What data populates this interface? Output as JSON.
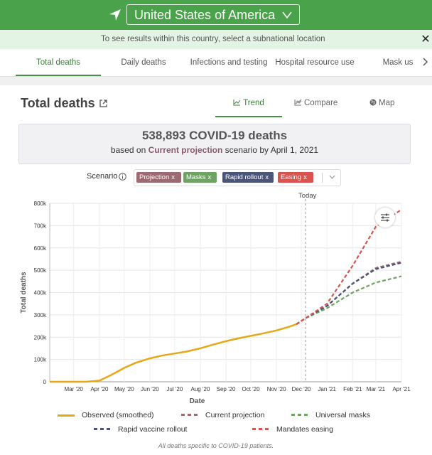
{
  "location": {
    "selected": "United States of America"
  },
  "infobar": {
    "message": "To see results within this country, select a subnational location",
    "close_glyph": "✕"
  },
  "tabs": [
    {
      "label": "Total deaths",
      "active": true
    },
    {
      "label": "Daily deaths"
    },
    {
      "label": "Infections and testing"
    },
    {
      "label": "Hospital resource use"
    },
    {
      "label": "Mask us"
    }
  ],
  "card": {
    "title": "Total deaths",
    "view_tabs": [
      {
        "label": "Trend",
        "icon": "trend-icon",
        "active": true
      },
      {
        "label": "Compare",
        "icon": "compare-icon"
      },
      {
        "label": "Map",
        "icon": "globe-icon"
      }
    ],
    "summary": {
      "headline": "538,893 COVID-19 deaths",
      "prefix": "based on",
      "scenario": "Current projection",
      "suffix": "scenario by April 1, 2021"
    },
    "scenario_label": "Scenario",
    "chips": [
      {
        "label": "Projection",
        "color": "#9b6a72"
      },
      {
        "label": "Masks",
        "color": "#6ea364"
      },
      {
        "label": "Rapid rollout",
        "color": "#4a5578"
      },
      {
        "label": "Easing",
        "color": "#d9534f"
      }
    ],
    "chip_remove_glyph": "x",
    "today_label": "Today",
    "footnote": "All deaths specific to COVID-19 patients."
  },
  "chart_data": {
    "type": "line",
    "xlabel": "Date",
    "ylabel": "Total deaths",
    "x_ticks": [
      "Mar '20",
      "Apr '20",
      "May '20",
      "Jun '20",
      "Jul '20",
      "Aug '20",
      "Sep '20",
      "Oct '20",
      "Nov '20",
      "Dec '20",
      "Jan '21",
      "Feb '21",
      "Mar '21",
      "Apr '21"
    ],
    "y_ticks": [
      "0",
      "100k",
      "200k",
      "300k",
      "400k",
      "500k",
      "600k",
      "700k",
      "800k"
    ],
    "ylim": [
      0,
      800000
    ],
    "xlim": [
      "2020-02-01",
      "2021-04-01"
    ],
    "today": "2020-12-06",
    "legend_placement": "bottom",
    "series": [
      {
        "name": "Observed (smoothed)",
        "color": "#e6a817",
        "style": "solid",
        "points": [
          [
            "2020-02-01",
            0
          ],
          [
            "2020-03-15",
            0
          ],
          [
            "2020-04-01",
            5000
          ],
          [
            "2020-04-15",
            30000
          ],
          [
            "2020-05-01",
            62000
          ],
          [
            "2020-05-15",
            85000
          ],
          [
            "2020-06-01",
            105000
          ],
          [
            "2020-06-15",
            117000
          ],
          [
            "2020-07-01",
            127000
          ],
          [
            "2020-07-15",
            135000
          ],
          [
            "2020-08-01",
            150000
          ],
          [
            "2020-08-15",
            165000
          ],
          [
            "2020-09-01",
            182000
          ],
          [
            "2020-09-15",
            194000
          ],
          [
            "2020-10-01",
            206000
          ],
          [
            "2020-10-15",
            216000
          ],
          [
            "2020-11-01",
            230000
          ],
          [
            "2020-11-15",
            245000
          ],
          [
            "2020-11-25",
            258000
          ]
        ]
      },
      {
        "name": "Current projection",
        "color": "#9b6a72",
        "style": "dashed",
        "points": [
          [
            "2020-11-25",
            258000
          ],
          [
            "2020-12-06",
            285000
          ],
          [
            "2021-01-01",
            340000
          ],
          [
            "2021-02-01",
            440000
          ],
          [
            "2021-03-01",
            510000
          ],
          [
            "2021-04-01",
            539000
          ]
        ]
      },
      {
        "name": "Universal masks",
        "color": "#6ea364",
        "style": "dashed",
        "points": [
          [
            "2020-11-25",
            258000
          ],
          [
            "2020-12-06",
            285000
          ],
          [
            "2021-01-01",
            330000
          ],
          [
            "2021-02-01",
            400000
          ],
          [
            "2021-03-01",
            445000
          ],
          [
            "2021-04-01",
            473000
          ]
        ]
      },
      {
        "name": "Rapid vaccine rollout",
        "color": "#4a5578",
        "style": "dashed",
        "points": [
          [
            "2020-11-25",
            258000
          ],
          [
            "2020-12-06",
            285000
          ],
          [
            "2021-01-01",
            340000
          ],
          [
            "2021-02-01",
            440000
          ],
          [
            "2021-03-01",
            505000
          ],
          [
            "2021-04-01",
            534000
          ]
        ]
      },
      {
        "name": "Mandates easing",
        "color": "#d9534f",
        "style": "dashed",
        "points": [
          [
            "2020-11-25",
            258000
          ],
          [
            "2020-12-06",
            285000
          ],
          [
            "2021-01-01",
            350000
          ],
          [
            "2021-02-01",
            520000
          ],
          [
            "2021-03-01",
            695000
          ],
          [
            "2021-04-01",
            772000
          ]
        ]
      }
    ]
  }
}
